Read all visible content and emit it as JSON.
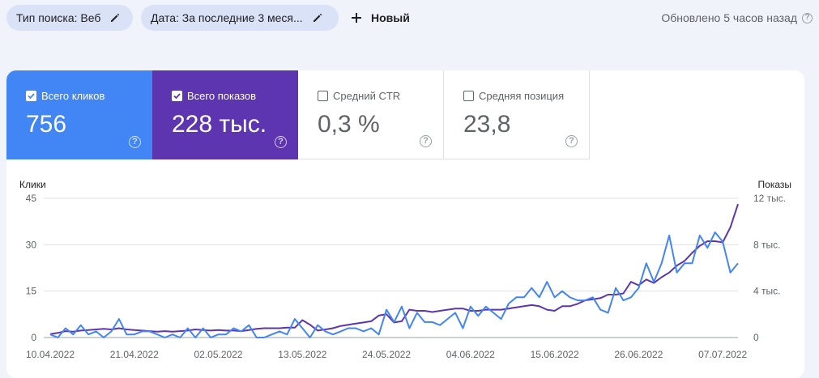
{
  "filters": {
    "search_type": "Тип поиска: Веб",
    "date": "Дата: За последние 3 меся...",
    "new_label": "Новый"
  },
  "updated_text": "Обновлено 5 часов назад",
  "metrics": [
    {
      "label": "Всего кликов",
      "value": "756",
      "checked": true,
      "color": "#4285f4"
    },
    {
      "label": "Всего показов",
      "value": "228 тыс.",
      "checked": true,
      "color": "#5e35b1"
    },
    {
      "label": "Средний CTR",
      "value": "0,3 %",
      "checked": false
    },
    {
      "label": "Средняя позиция",
      "value": "23,8",
      "checked": false
    }
  ],
  "chart_data": {
    "type": "line",
    "ylabel_left": "Клики",
    "ylabel_right": "Показы",
    "y_left_ticks": [
      "45",
      "30",
      "15",
      "0"
    ],
    "y_right_ticks": [
      "12 тыс.",
      "8 тыс.",
      "4 тыс.",
      "0"
    ],
    "ylim_left": [
      0,
      45
    ],
    "ylim_right": [
      0,
      12000
    ],
    "x_ticks": [
      "10.04.2022",
      "21.04.2022",
      "02.05.2022",
      "13.05.2022",
      "24.05.2022",
      "04.06.2022",
      "15.06.2022",
      "26.06.2022",
      "07.07.2022"
    ],
    "grid": true,
    "series": [
      {
        "name": "Всего кликов",
        "axis": "left",
        "color": "#4285f4",
        "values": [
          1,
          0,
          3,
          1,
          4,
          1,
          2,
          0,
          2,
          6,
          1,
          1,
          2,
          2,
          1,
          0,
          1,
          0,
          3,
          0,
          3,
          0,
          1,
          1,
          3,
          2,
          4,
          0,
          0,
          1,
          2,
          1,
          6,
          3,
          0,
          4,
          2,
          1,
          2,
          3,
          3,
          2,
          3,
          1,
          9,
          5,
          10,
          3,
          8,
          5,
          5,
          4,
          6,
          8,
          3,
          10,
          7,
          10,
          8,
          6,
          11,
          13,
          13,
          16,
          13,
          18,
          13,
          15,
          13,
          12,
          12,
          13,
          9,
          8,
          16,
          12,
          13,
          16,
          24,
          18,
          24,
          33,
          21,
          24,
          24,
          33,
          29,
          34,
          31,
          21,
          24
        ]
      },
      {
        "name": "Всего показов",
        "axis": "right",
        "color": "#5e35b1",
        "values": [
          300,
          400,
          550,
          500,
          600,
          650,
          700,
          750,
          700,
          800,
          700,
          650,
          600,
          550,
          500,
          550,
          500,
          550,
          600,
          700,
          650,
          600,
          650,
          600,
          600,
          550,
          650,
          750,
          800,
          800,
          800,
          850,
          850,
          1500,
          1100,
          600,
          700,
          800,
          1000,
          1100,
          1200,
          1300,
          1400,
          1900,
          2000,
          1300,
          1400,
          2400,
          2300,
          2300,
          2200,
          2300,
          2400,
          2500,
          2500,
          2300,
          2300,
          2400,
          2400,
          2400,
          2500,
          2600,
          2700,
          2800,
          2700,
          2400,
          2300,
          2700,
          2700,
          2900,
          3200,
          3300,
          3400,
          3700,
          3700,
          3800,
          4800,
          4500,
          5000,
          4700,
          5200,
          5600,
          6200,
          6600,
          7300,
          7900,
          8300,
          8300,
          8200,
          9500,
          11500
        ]
      }
    ]
  }
}
